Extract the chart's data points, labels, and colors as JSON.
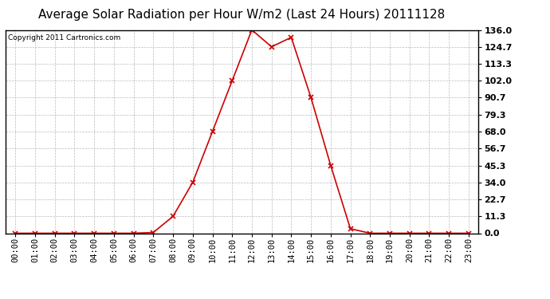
{
  "title": "Average Solar Radiation per Hour W/m2 (Last 24 Hours) 20111128",
  "copyright_text": "Copyright 2011 Cartronics.com",
  "line_color": "#cc0000",
  "marker": "x",
  "marker_color": "#cc0000",
  "bg_color": "#ffffff",
  "plot_bg_color": "#ffffff",
  "grid_color": "#bbbbbb",
  "hours": [
    0,
    1,
    2,
    3,
    4,
    5,
    6,
    7,
    8,
    9,
    10,
    11,
    12,
    13,
    14,
    15,
    16,
    17,
    18,
    19,
    20,
    21,
    22,
    23
  ],
  "values": [
    0.0,
    0.0,
    0.0,
    0.0,
    0.0,
    0.0,
    0.0,
    0.5,
    11.3,
    34.0,
    68.0,
    102.0,
    136.0,
    124.7,
    131.0,
    90.7,
    45.3,
    3.0,
    0.0,
    0.0,
    0.0,
    0.0,
    0.0,
    0.0
  ],
  "yticks": [
    0.0,
    11.3,
    22.7,
    34.0,
    45.3,
    56.7,
    68.0,
    79.3,
    90.7,
    102.0,
    113.3,
    124.7,
    136.0
  ],
  "ylim": [
    0.0,
    136.0
  ],
  "xtick_labels": [
    "00:00",
    "01:00",
    "02:00",
    "03:00",
    "04:00",
    "05:00",
    "06:00",
    "07:00",
    "08:00",
    "09:00",
    "10:00",
    "11:00",
    "12:00",
    "13:00",
    "14:00",
    "15:00",
    "16:00",
    "17:00",
    "18:00",
    "19:00",
    "20:00",
    "21:00",
    "22:00",
    "23:00"
  ],
  "title_fontsize": 11,
  "copyright_fontsize": 6.5,
  "tick_fontsize": 7.5,
  "ytick_fontsize": 8
}
